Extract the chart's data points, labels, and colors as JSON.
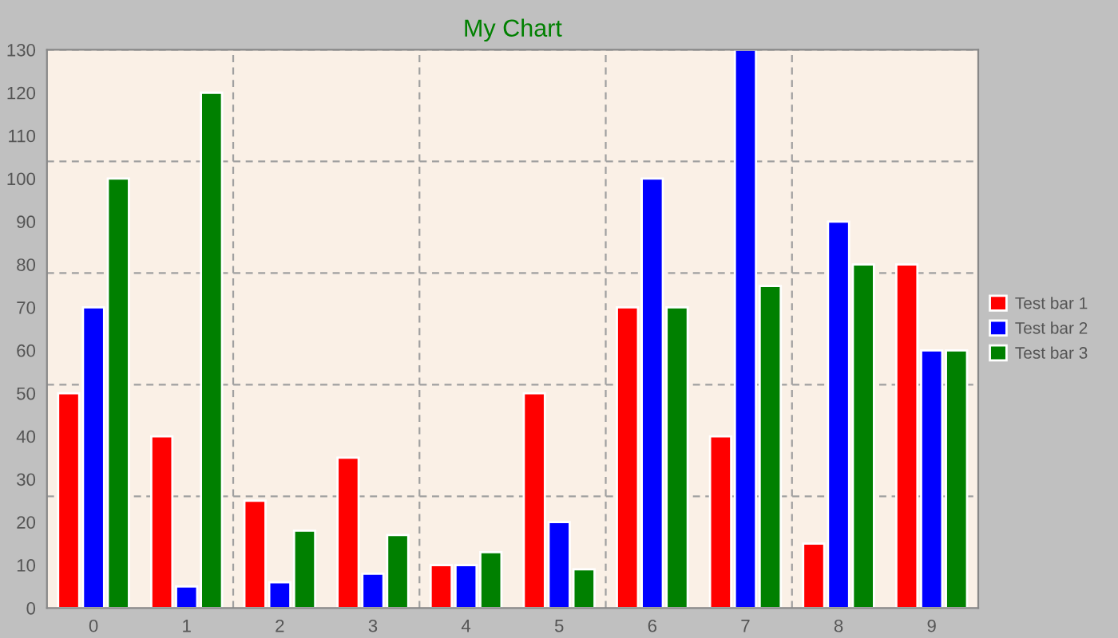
{
  "chart_data": {
    "type": "bar",
    "title": "My Chart",
    "categories": [
      "0",
      "1",
      "2",
      "3",
      "4",
      "5",
      "6",
      "7",
      "8",
      "9"
    ],
    "series": [
      {
        "name": "Test bar 1",
        "color": "#ff0000",
        "values": [
          50,
          40,
          25,
          35,
          10,
          50,
          70,
          40,
          15,
          80
        ]
      },
      {
        "name": "Test bar 2",
        "color": "#0000ff",
        "values": [
          70,
          5,
          6,
          8,
          10,
          20,
          100,
          130,
          90,
          60
        ]
      },
      {
        "name": "Test bar 3",
        "color": "#008000",
        "values": [
          100,
          120,
          18,
          17,
          13,
          9,
          70,
          75,
          80,
          60
        ]
      }
    ],
    "ylim": [
      0,
      130
    ],
    "yticks": [
      0,
      10,
      20,
      30,
      40,
      50,
      60,
      70,
      80,
      90,
      100,
      110,
      120,
      130
    ],
    "grid": true,
    "legend": "right"
  }
}
